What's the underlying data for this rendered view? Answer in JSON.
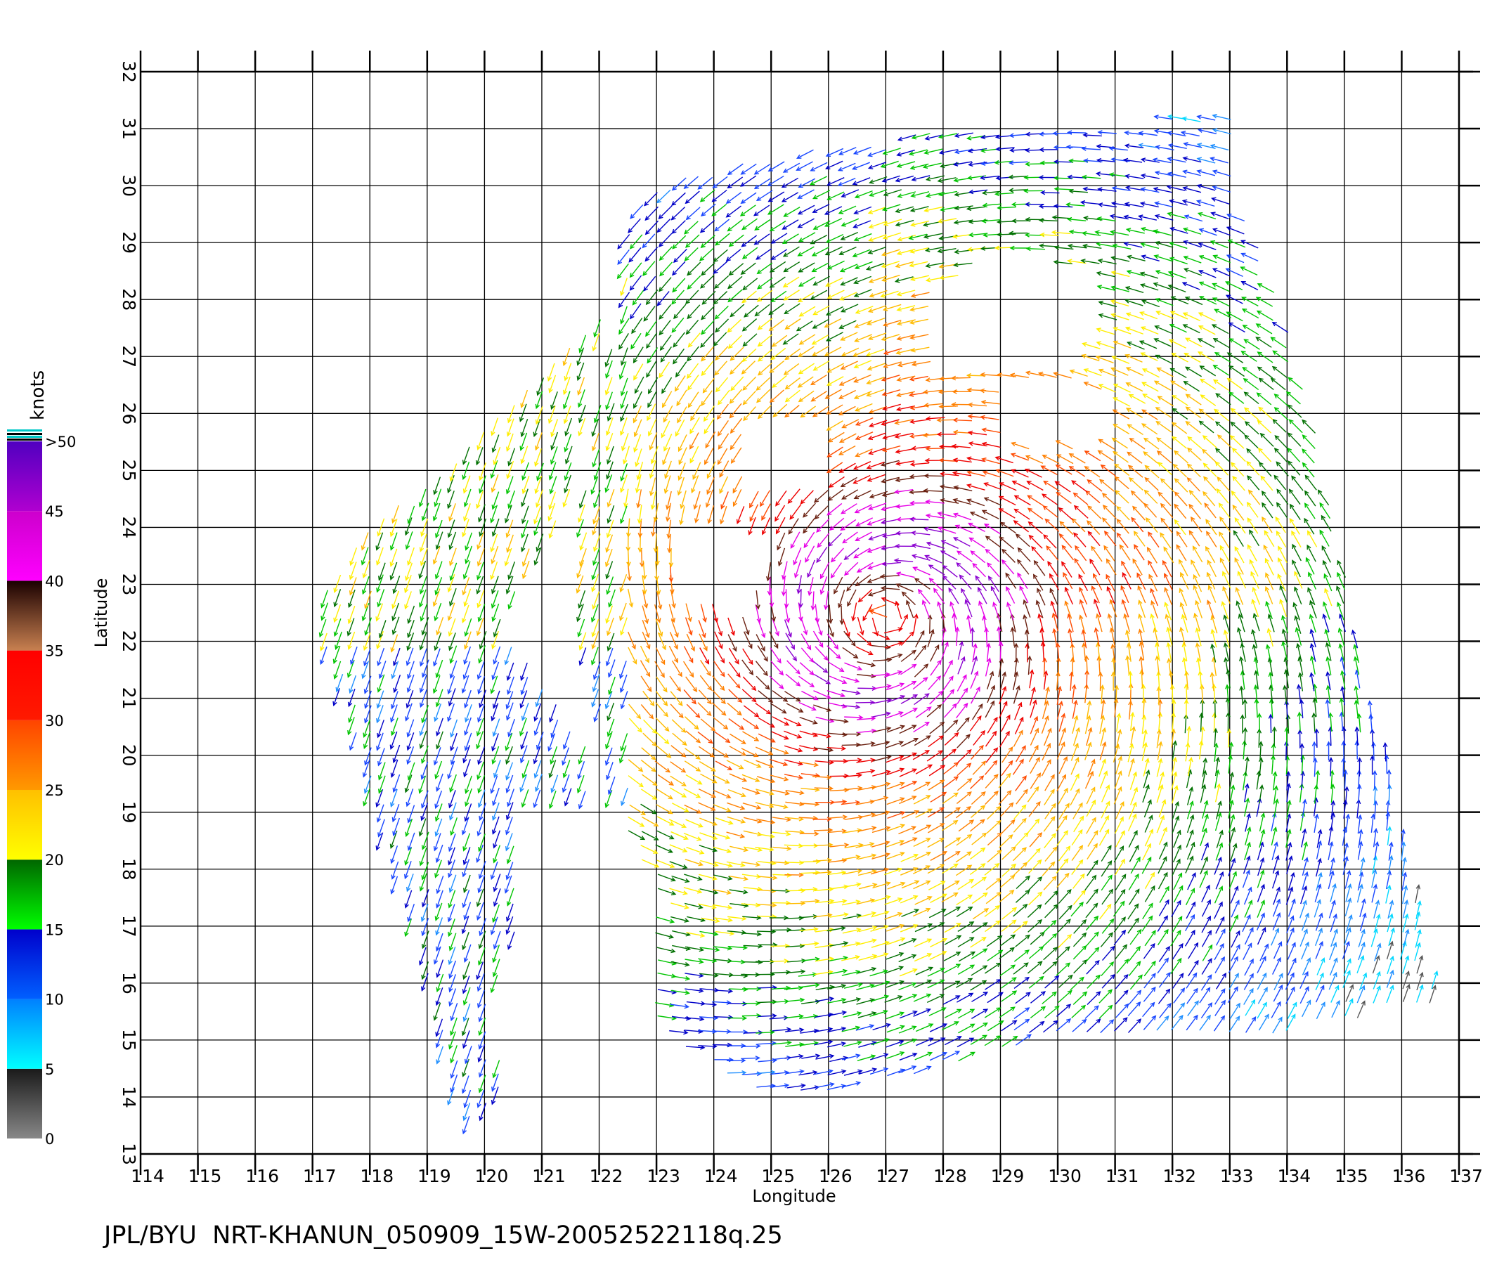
{
  "caption": "JPL/BYU  NRT-KHANUN_050909_15W-20052522118q.25",
  "chart_data": {
    "type": "scatter",
    "subtype": "wind-vector field",
    "xlabel": "Longitude",
    "ylabel": "Latitude",
    "xlim": [
      114,
      137
    ],
    "ylim": [
      13,
      32
    ],
    "x_ticks": [
      114,
      115,
      116,
      117,
      118,
      119,
      120,
      121,
      122,
      123,
      124,
      125,
      126,
      127,
      128,
      129,
      130,
      131,
      132,
      133,
      134,
      135,
      136,
      137
    ],
    "y_ticks": [
      13,
      14,
      15,
      16,
      17,
      18,
      19,
      20,
      21,
      22,
      23,
      24,
      25,
      26,
      27,
      28,
      29,
      30,
      31,
      32
    ],
    "grid": true,
    "storm_center": {
      "lon": 127.0,
      "lat": 22.4
    },
    "colorbar": {
      "title": "knots",
      "labels": [
        "0",
        "5",
        "10",
        "15",
        "20",
        "25",
        "30",
        "35",
        "40",
        "45",
        ">50"
      ],
      "bins": [
        {
          "range": [
            0,
            5
          ],
          "colors": [
            "#888888",
            "#1a1a1a"
          ]
        },
        {
          "range": [
            5,
            10
          ],
          "colors": [
            "#00ffff",
            "#0080ff"
          ]
        },
        {
          "range": [
            10,
            15
          ],
          "colors": [
            "#0060ff",
            "#0000cc"
          ]
        },
        {
          "range": [
            15,
            20
          ],
          "colors": [
            "#00ff00",
            "#006600"
          ]
        },
        {
          "range": [
            20,
            25
          ],
          "colors": [
            "#ffff00",
            "#ffc000"
          ]
        },
        {
          "range": [
            25,
            30
          ],
          "colors": [
            "#ff9900",
            "#ff4400"
          ]
        },
        {
          "range": [
            30,
            35
          ],
          "colors": [
            "#ff1a00",
            "#ff0000"
          ]
        },
        {
          "range": [
            35,
            40
          ],
          "colors": [
            "#c88050",
            "#1a0000"
          ]
        },
        {
          "range": [
            40,
            45
          ],
          "colors": [
            "#ff00ff",
            "#cc00cc"
          ]
        },
        {
          "range": [
            45,
            50
          ],
          "colors": [
            "#b000d0",
            "#5000c0"
          ]
        }
      ]
    }
  }
}
